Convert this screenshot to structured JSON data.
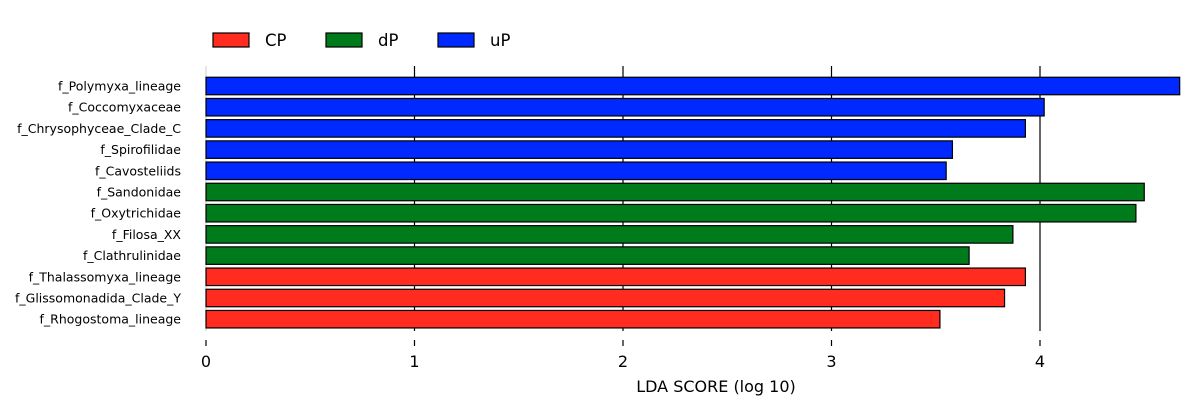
{
  "chart_data": {
    "type": "bar",
    "orientation": "horizontal",
    "xlabel": "LDA SCORE (log 10)",
    "ylabel": "",
    "xlim": [
      0,
      4.67
    ],
    "xticks": [
      "0",
      "1",
      "2",
      "3",
      "4"
    ],
    "grid": "vertical lines at major ticks",
    "legend_position": "top-left",
    "legend": [
      {
        "name": "CP",
        "color": "#ff2c1f"
      },
      {
        "name": "dP",
        "color": "#007b1c"
      },
      {
        "name": "uP",
        "color": "#0029ff"
      }
    ],
    "bars": [
      {
        "label": "f_Polymyxa_lineage",
        "value": 4.67,
        "group": "uP"
      },
      {
        "label": "f_Coccomyxaceae",
        "value": 4.02,
        "group": "uP"
      },
      {
        "label": "f_Chrysophyceae_Clade_C",
        "value": 3.93,
        "group": "uP"
      },
      {
        "label": "f_Spirofilidae",
        "value": 3.58,
        "group": "uP"
      },
      {
        "label": "f_Cavosteliids",
        "value": 3.55,
        "group": "uP"
      },
      {
        "label": "f_Sandonidae",
        "value": 4.5,
        "group": "dP"
      },
      {
        "label": "f_Oxytrichidae",
        "value": 4.46,
        "group": "dP"
      },
      {
        "label": "f_Filosa_XX",
        "value": 3.87,
        "group": "dP"
      },
      {
        "label": "f_Clathrulinidae",
        "value": 3.66,
        "group": "dP"
      },
      {
        "label": "f_Thalassomyxa_lineage",
        "value": 3.93,
        "group": "CP"
      },
      {
        "label": "f_Glissomonadida_Clade_Y",
        "value": 3.83,
        "group": "CP"
      },
      {
        "label": "f_Rhogostoma_lineage",
        "value": 3.52,
        "group": "CP"
      }
    ]
  }
}
